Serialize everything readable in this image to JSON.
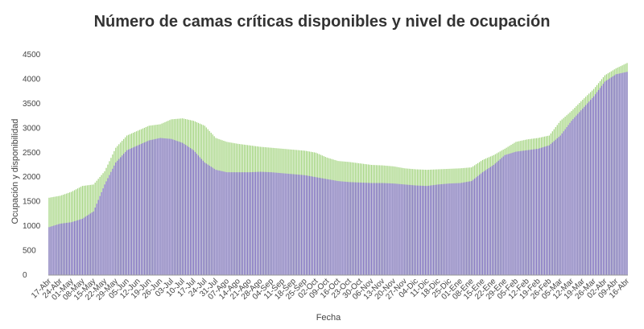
{
  "chart_data": {
    "type": "bar",
    "title": "Número de camas críticas disponibles y nivel de ocupación",
    "xlabel": "Fecha",
    "ylabel": "Ocupación y disponibilidad",
    "ylim": [
      0,
      4500
    ],
    "yticks": [
      0,
      500,
      1000,
      1500,
      2000,
      2500,
      3000,
      3500,
      4000,
      4500
    ],
    "grid": false,
    "legend": "none",
    "stacking": "overlay",
    "colors": {
      "occupied": "#b3a6dd",
      "occupied_edge": "#7a68c0",
      "available": "#cdebb3",
      "available_edge": "#9fd27a"
    },
    "categories": [
      "17-Abr",
      "24-Abr",
      "01-May",
      "08-May",
      "15-May",
      "22-May",
      "29-May",
      "05-Jun",
      "12-Jun",
      "19-Jun",
      "26-Jun",
      "03-Jul",
      "10-Jul",
      "17-Jul",
      "24-Jul",
      "31-Jul",
      "07-Ago",
      "14-Ago",
      "21-Ago",
      "28-Ago",
      "04-Sep",
      "11-Sep",
      "18-Sep",
      "25-Sep",
      "02-Oct",
      "09-Oct",
      "16-Oct",
      "23-Oct",
      "30-Oct",
      "06-Nov",
      "13-Nov",
      "20-Nov",
      "27-Nov",
      "04-Dic",
      "11-Dic",
      "18-Dic",
      "25-Dic",
      "01-Ene",
      "08-Ene",
      "15-Ene",
      "22-Ene",
      "29-Ene",
      "05-Feb",
      "12-Feb",
      "19-Feb",
      "26-Feb",
      "05-Mar",
      "12-Mar",
      "19-Mar",
      "26-Mar",
      "02-Abr",
      "09-Abr",
      "16-Abr"
    ],
    "series": [
      {
        "key": "occupied",
        "values": [
          980,
          1050,
          1080,
          1150,
          1300,
          1850,
          2300,
          2550,
          2650,
          2750,
          2800,
          2780,
          2700,
          2550,
          2300,
          2150,
          2100,
          2100,
          2100,
          2110,
          2100,
          2080,
          2060,
          2040,
          2000,
          1960,
          1920,
          1900,
          1890,
          1880,
          1880,
          1870,
          1850,
          1830,
          1820,
          1850,
          1870,
          1880,
          1920,
          2100,
          2250,
          2450,
          2520,
          2550,
          2580,
          2650,
          2850,
          3150,
          3400,
          3650,
          3950,
          4100,
          4150
        ]
      },
      {
        "key": "available",
        "values": [
          1580,
          1620,
          1700,
          1820,
          1850,
          2120,
          2600,
          2850,
          2950,
          3050,
          3080,
          3180,
          3200,
          3150,
          3050,
          2800,
          2720,
          2680,
          2650,
          2620,
          2600,
          2580,
          2560,
          2540,
          2500,
          2400,
          2330,
          2310,
          2280,
          2250,
          2240,
          2220,
          2180,
          2160,
          2150,
          2160,
          2170,
          2180,
          2200,
          2350,
          2450,
          2580,
          2720,
          2770,
          2800,
          2850,
          3150,
          3350,
          3580,
          3800,
          4080,
          4220,
          4330
        ]
      }
    ]
  }
}
